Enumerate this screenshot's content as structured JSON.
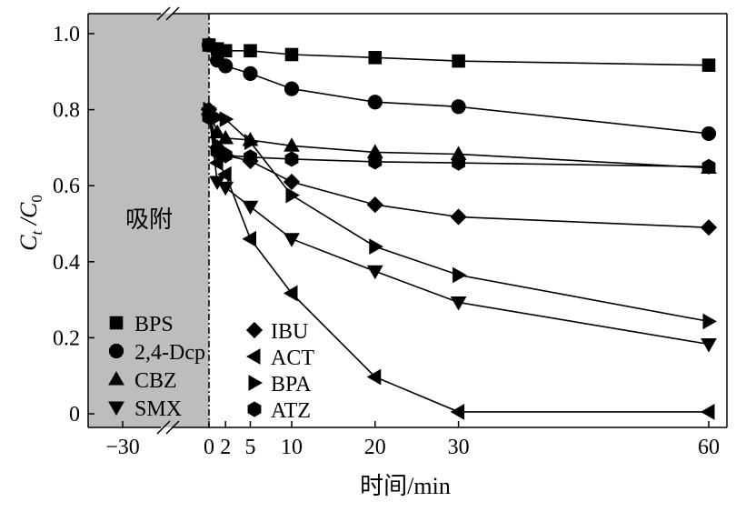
{
  "chart_data": {
    "type": "line",
    "xlabel": "时间/min",
    "ylabel_main": "C",
    "ylabel_sub1": "t",
    "ylabel_mid": " /C",
    "ylabel_sub2": "0",
    "annotation": "吸附",
    "x_ticks": [
      {
        "value": -30,
        "label": "−30"
      },
      {
        "value": 0,
        "label": "0"
      },
      {
        "value": 2,
        "label": "2"
      },
      {
        "value": 5,
        "label": "5"
      },
      {
        "value": 10,
        "label": "10"
      },
      {
        "value": 20,
        "label": "20"
      },
      {
        "value": 30,
        "label": "30"
      },
      {
        "value": 60,
        "label": "60"
      }
    ],
    "y_ticks": [
      {
        "value": 0,
        "label": "0"
      },
      {
        "value": 0.2,
        "label": "0.2"
      },
      {
        "value": 0.4,
        "label": "0.4"
      },
      {
        "value": 0.6,
        "label": "0.6"
      },
      {
        "value": 0.8,
        "label": "0.8"
      },
      {
        "value": 1.0,
        "label": "1.0"
      }
    ],
    "ylim": [
      0,
      1.0
    ],
    "x": [
      0,
      1,
      2,
      5,
      10,
      20,
      30,
      60
    ],
    "series": [
      {
        "name": "BPS",
        "marker": "square",
        "values": [
          0.97,
          0.96,
          0.955,
          0.955,
          0.945,
          0.937,
          0.928,
          0.917
        ]
      },
      {
        "name": "2,4-Dcp",
        "marker": "circle",
        "values": [
          0.97,
          0.93,
          0.915,
          0.895,
          0.855,
          0.82,
          0.808,
          0.737
        ]
      },
      {
        "name": "CBZ",
        "marker": "triangle-up",
        "values": [
          0.8,
          0.74,
          0.725,
          0.72,
          0.705,
          0.688,
          0.683,
          0.647
        ]
      },
      {
        "name": "SMX",
        "marker": "triangle-down",
        "values": [
          0.79,
          0.61,
          0.595,
          0.545,
          0.46,
          0.375,
          0.293,
          0.183
        ]
      },
      {
        "name": "IBU",
        "marker": "diamond",
        "values": [
          0.8,
          0.7,
          0.68,
          0.665,
          0.61,
          0.55,
          0.518,
          0.49
        ]
      },
      {
        "name": "ACT",
        "marker": "triangle-left",
        "values": [
          0.79,
          0.66,
          0.63,
          0.46,
          0.317,
          0.097,
          0.005,
          0.005
        ]
      },
      {
        "name": "BPA",
        "marker": "triangle-right",
        "values": [
          0.8,
          0.78,
          0.775,
          0.715,
          0.575,
          0.44,
          0.365,
          0.243
        ]
      },
      {
        "name": "ATZ",
        "marker": "hexagon",
        "values": [
          0.78,
          0.69,
          0.68,
          0.675,
          0.67,
          0.663,
          0.66,
          0.65
        ]
      }
    ],
    "legend": [
      {
        "column": 1,
        "items": [
          "BPS",
          "2,4-Dcp",
          "CBZ",
          "SMX"
        ]
      },
      {
        "column": 2,
        "items": [
          "IBU",
          "ACT",
          "BPA",
          "ATZ"
        ]
      }
    ]
  }
}
